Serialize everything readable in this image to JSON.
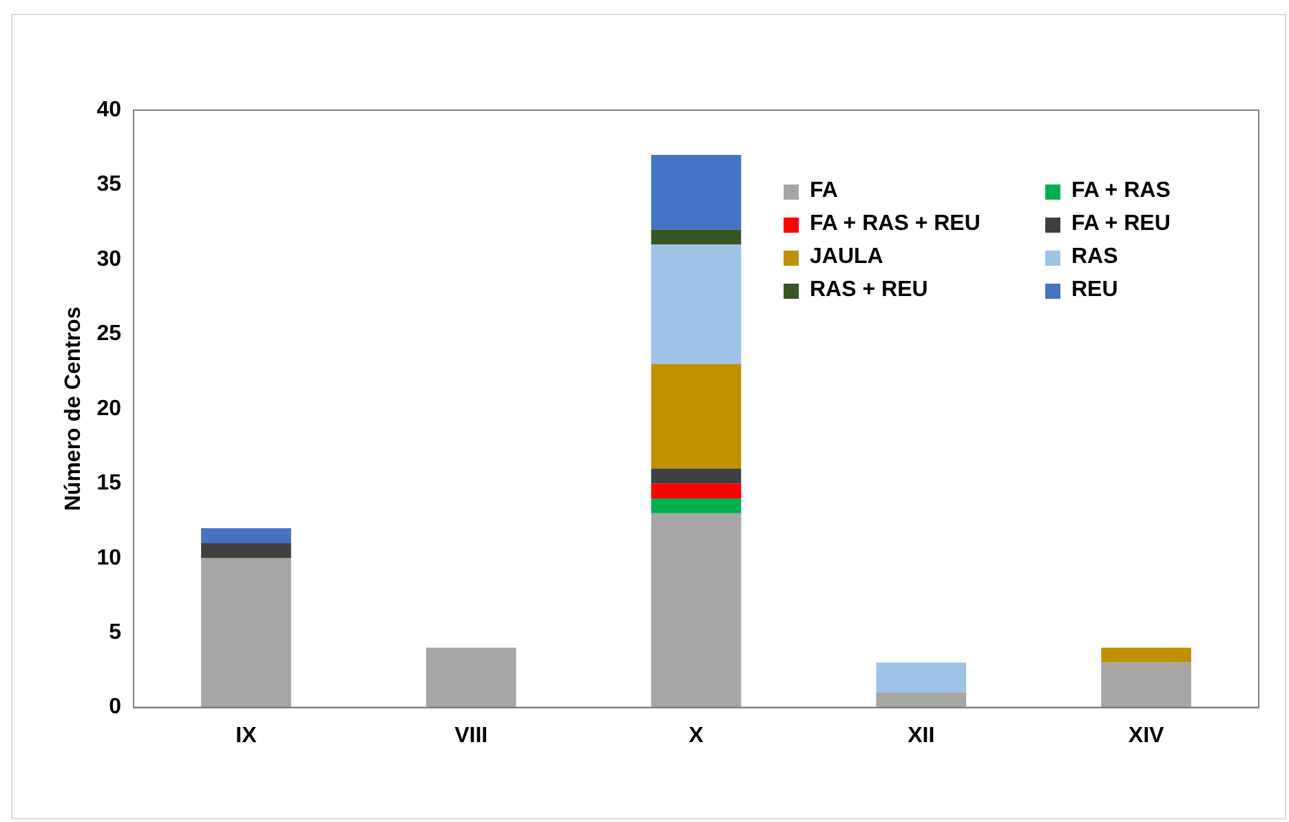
{
  "chart_data": {
    "type": "bar",
    "stacked": true,
    "ylabel": "Número de Centros",
    "categories": [
      "IX",
      "VIII",
      "X",
      "XII",
      "XIV"
    ],
    "ylim": [
      0,
      40
    ],
    "yticks": [
      0,
      5,
      10,
      15,
      20,
      25,
      30,
      35,
      40
    ],
    "grid": false,
    "legend": "top right",
    "series": [
      {
        "name": "FA",
        "color": "#a6a6a6",
        "values": [
          10,
          4,
          13,
          1,
          3
        ]
      },
      {
        "name": "FA + RAS",
        "color": "#00b050",
        "values": [
          null,
          null,
          1,
          null,
          null
        ]
      },
      {
        "name": "FA + RAS + REU",
        "color": "#ff0000",
        "values": [
          null,
          null,
          1,
          null,
          null
        ]
      },
      {
        "name": "FA + REU",
        "color": "#404040",
        "values": [
          1,
          null,
          1,
          null,
          null
        ]
      },
      {
        "name": "JAULA",
        "color": "#bf9000",
        "values": [
          null,
          null,
          7,
          null,
          1
        ]
      },
      {
        "name": "RAS",
        "color": "#9dc3e6",
        "values": [
          null,
          null,
          8,
          2,
          null
        ]
      },
      {
        "name": "RAS + REU",
        "color": "#375623",
        "values": [
          null,
          null,
          1,
          null,
          null
        ]
      },
      {
        "name": "REU",
        "color": "#4472c4",
        "values": [
          1,
          null,
          5,
          null,
          null
        ]
      }
    ]
  }
}
